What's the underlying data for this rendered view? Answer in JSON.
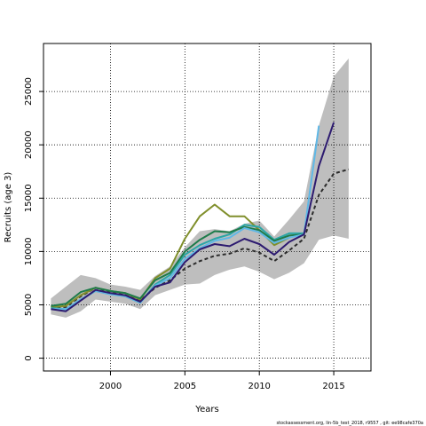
{
  "chart_data": {
    "type": "line",
    "title": "",
    "xlabel": "Years",
    "ylabel": "Recruits (age 3)",
    "xlim": [
      1995.5,
      2017.5
    ],
    "ylim": [
      -1200,
      29500
    ],
    "x_ticks": [
      2000,
      2005,
      2010,
      2015
    ],
    "y_ticks": [
      0,
      5000,
      10000,
      15000,
      20000,
      25000
    ],
    "grid": true,
    "legend": "none",
    "confidence_band": {
      "color": "#bebebe",
      "x": [
        1996,
        1997,
        1998,
        1999,
        2000,
        2001,
        2002,
        2003,
        2004,
        2005,
        2006,
        2007,
        2008,
        2009,
        2010,
        2011,
        2012,
        2013,
        2014,
        2015,
        2016
      ],
      "lower": [
        4100,
        3800,
        4400,
        5500,
        5300,
        5100,
        4600,
        5900,
        6400,
        6900,
        7000,
        7800,
        8300,
        8600,
        8100,
        7400,
        8000,
        8900,
        11100,
        11500,
        11200
      ],
      "upper": [
        5600,
        6700,
        7800,
        7500,
        6900,
        6700,
        6400,
        7700,
        8600,
        10400,
        11900,
        12100,
        11900,
        12600,
        12900,
        11400,
        13000,
        14700,
        21800,
        26400,
        28100
      ]
    },
    "series": [
      {
        "color": "#2b2b2b",
        "dashed": true,
        "x": [
          1996,
          1997,
          1998,
          1999,
          2000,
          2001,
          2002,
          2003,
          2004,
          2005,
          2006,
          2007,
          2008,
          2009,
          2010,
          2011,
          2012,
          2013,
          2014,
          2015,
          2016
        ],
        "values": [
          4800,
          4800,
          5800,
          6600,
          6200,
          5900,
          5400,
          6600,
          7300,
          8400,
          9100,
          9600,
          9800,
          10300,
          9900,
          9100,
          10100,
          11200,
          15300,
          17300,
          17700
        ]
      },
      {
        "color": "#808f2b",
        "dashed": false,
        "x": [
          1996,
          1997,
          1998,
          1999,
          2000,
          2001,
          2002,
          2003,
          2004,
          2005,
          2006,
          2007,
          2008,
          2009,
          2010,
          2011,
          2012
        ],
        "values": [
          4800,
          4900,
          5900,
          6600,
          6300,
          6100,
          5500,
          7500,
          8400,
          11200,
          13300,
          14400,
          13300,
          13300,
          12000,
          10600,
          11300
        ]
      },
      {
        "color": "#2aa6a6",
        "dashed": false,
        "x": [
          1996,
          1997,
          1998,
          1999,
          2000,
          2001,
          2002,
          2003,
          2004,
          2005,
          2006,
          2007,
          2008,
          2009,
          2010,
          2011,
          2012,
          2013
        ],
        "values": [
          4700,
          4600,
          5500,
          6300,
          6000,
          5800,
          5200,
          6900,
          7800,
          9700,
          10600,
          11200,
          11600,
          12500,
          12300,
          11100,
          11700,
          11700
        ]
      },
      {
        "color": "#1e7b4a",
        "dashed": false,
        "x": [
          1996,
          1997,
          1998,
          1999,
          2000,
          2001,
          2002,
          2003,
          2004,
          2005,
          2006,
          2007,
          2008,
          2009,
          2010,
          2011,
          2012,
          2013
        ],
        "values": [
          4900,
          5100,
          6200,
          6600,
          6300,
          6100,
          5600,
          7300,
          8000,
          10000,
          11100,
          11900,
          11800,
          12300,
          12000,
          11000,
          11500,
          11600
        ]
      },
      {
        "color": "#5fb8e6",
        "dashed": false,
        "x": [
          1996,
          1997,
          1998,
          1999,
          2000,
          2001,
          2002,
          2003,
          2004,
          2005,
          2006,
          2007,
          2008,
          2009,
          2010,
          2011,
          2012,
          2013,
          2014
        ],
        "values": [
          4600,
          4600,
          5500,
          6300,
          6000,
          5800,
          5200,
          6800,
          7500,
          9300,
          10300,
          11000,
          11300,
          12200,
          11800,
          10800,
          11300,
          11600,
          21800
        ]
      },
      {
        "color": "#2d1b70",
        "dashed": false,
        "x": [
          1996,
          1997,
          1998,
          1999,
          2000,
          2001,
          2002,
          2003,
          2004,
          2005,
          2006,
          2007,
          2008,
          2009,
          2010,
          2011,
          2012,
          2013,
          2014,
          2015
        ],
        "values": [
          4600,
          4400,
          5400,
          6400,
          6100,
          5900,
          5300,
          6700,
          7100,
          9000,
          10200,
          10700,
          10500,
          11200,
          10700,
          9700,
          10900,
          11600,
          18000,
          22100
        ]
      }
    ]
  },
  "footer": "stockassessment.org, lin-5b_test_2018, r9557 ,  git: ee98cafe370a"
}
